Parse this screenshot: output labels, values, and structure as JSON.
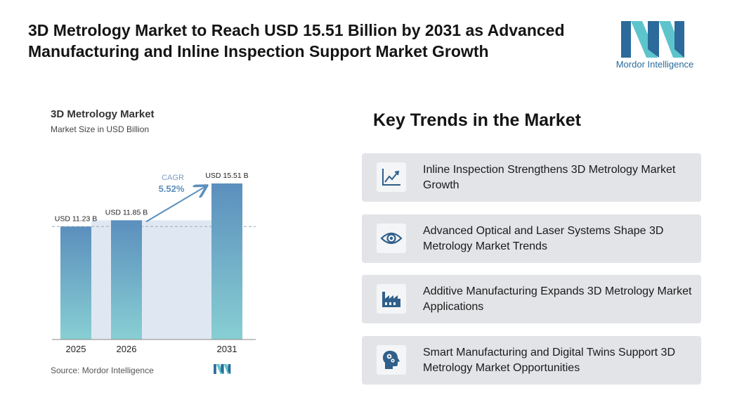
{
  "headline": "3D Metrology Market to Reach USD 15.51 Billion by 2031 as Advanced Manufacturing and Inline Inspection Support Market Growth",
  "brand": {
    "name": "Mordor Intelligence",
    "colors": {
      "dark": "#2b6a9a",
      "light": "#5ec4cc"
    }
  },
  "chart_data": {
    "type": "bar",
    "title": "3D Metrology Market",
    "subtitle": "Market Size in USD Billion",
    "categories": [
      "2025",
      "2026",
      "2031"
    ],
    "values": [
      11.23,
      11.85,
      15.51
    ],
    "data_labels": [
      "USD 11.23 B",
      "USD 11.85 B",
      "USD 15.51 B"
    ],
    "annotation": {
      "label": "CAGR",
      "value": "5.52%"
    },
    "source": "Source: Mordor Intelligence",
    "colors": {
      "bar_top": "#5b8fbd",
      "bar_bottom": "#88cfd3",
      "band": "#dfe8f2",
      "arrow": "#5b8fbd"
    }
  },
  "trends": {
    "title": "Key Trends in the Market",
    "items": [
      {
        "icon": "line-chart-icon",
        "text": "Inline Inspection Strengthens 3D Metrology Market Growth"
      },
      {
        "icon": "eye-icon",
        "text": "Advanced Optical and Laser Systems Shape 3D Metrology Market Trends"
      },
      {
        "icon": "factory-icon",
        "text": "Additive Manufacturing Expands 3D Metrology Market Applications"
      },
      {
        "icon": "head-gears-icon",
        "text": "Smart Manufacturing and Digital Twins Support 3D Metrology Market Opportunities"
      }
    ]
  }
}
